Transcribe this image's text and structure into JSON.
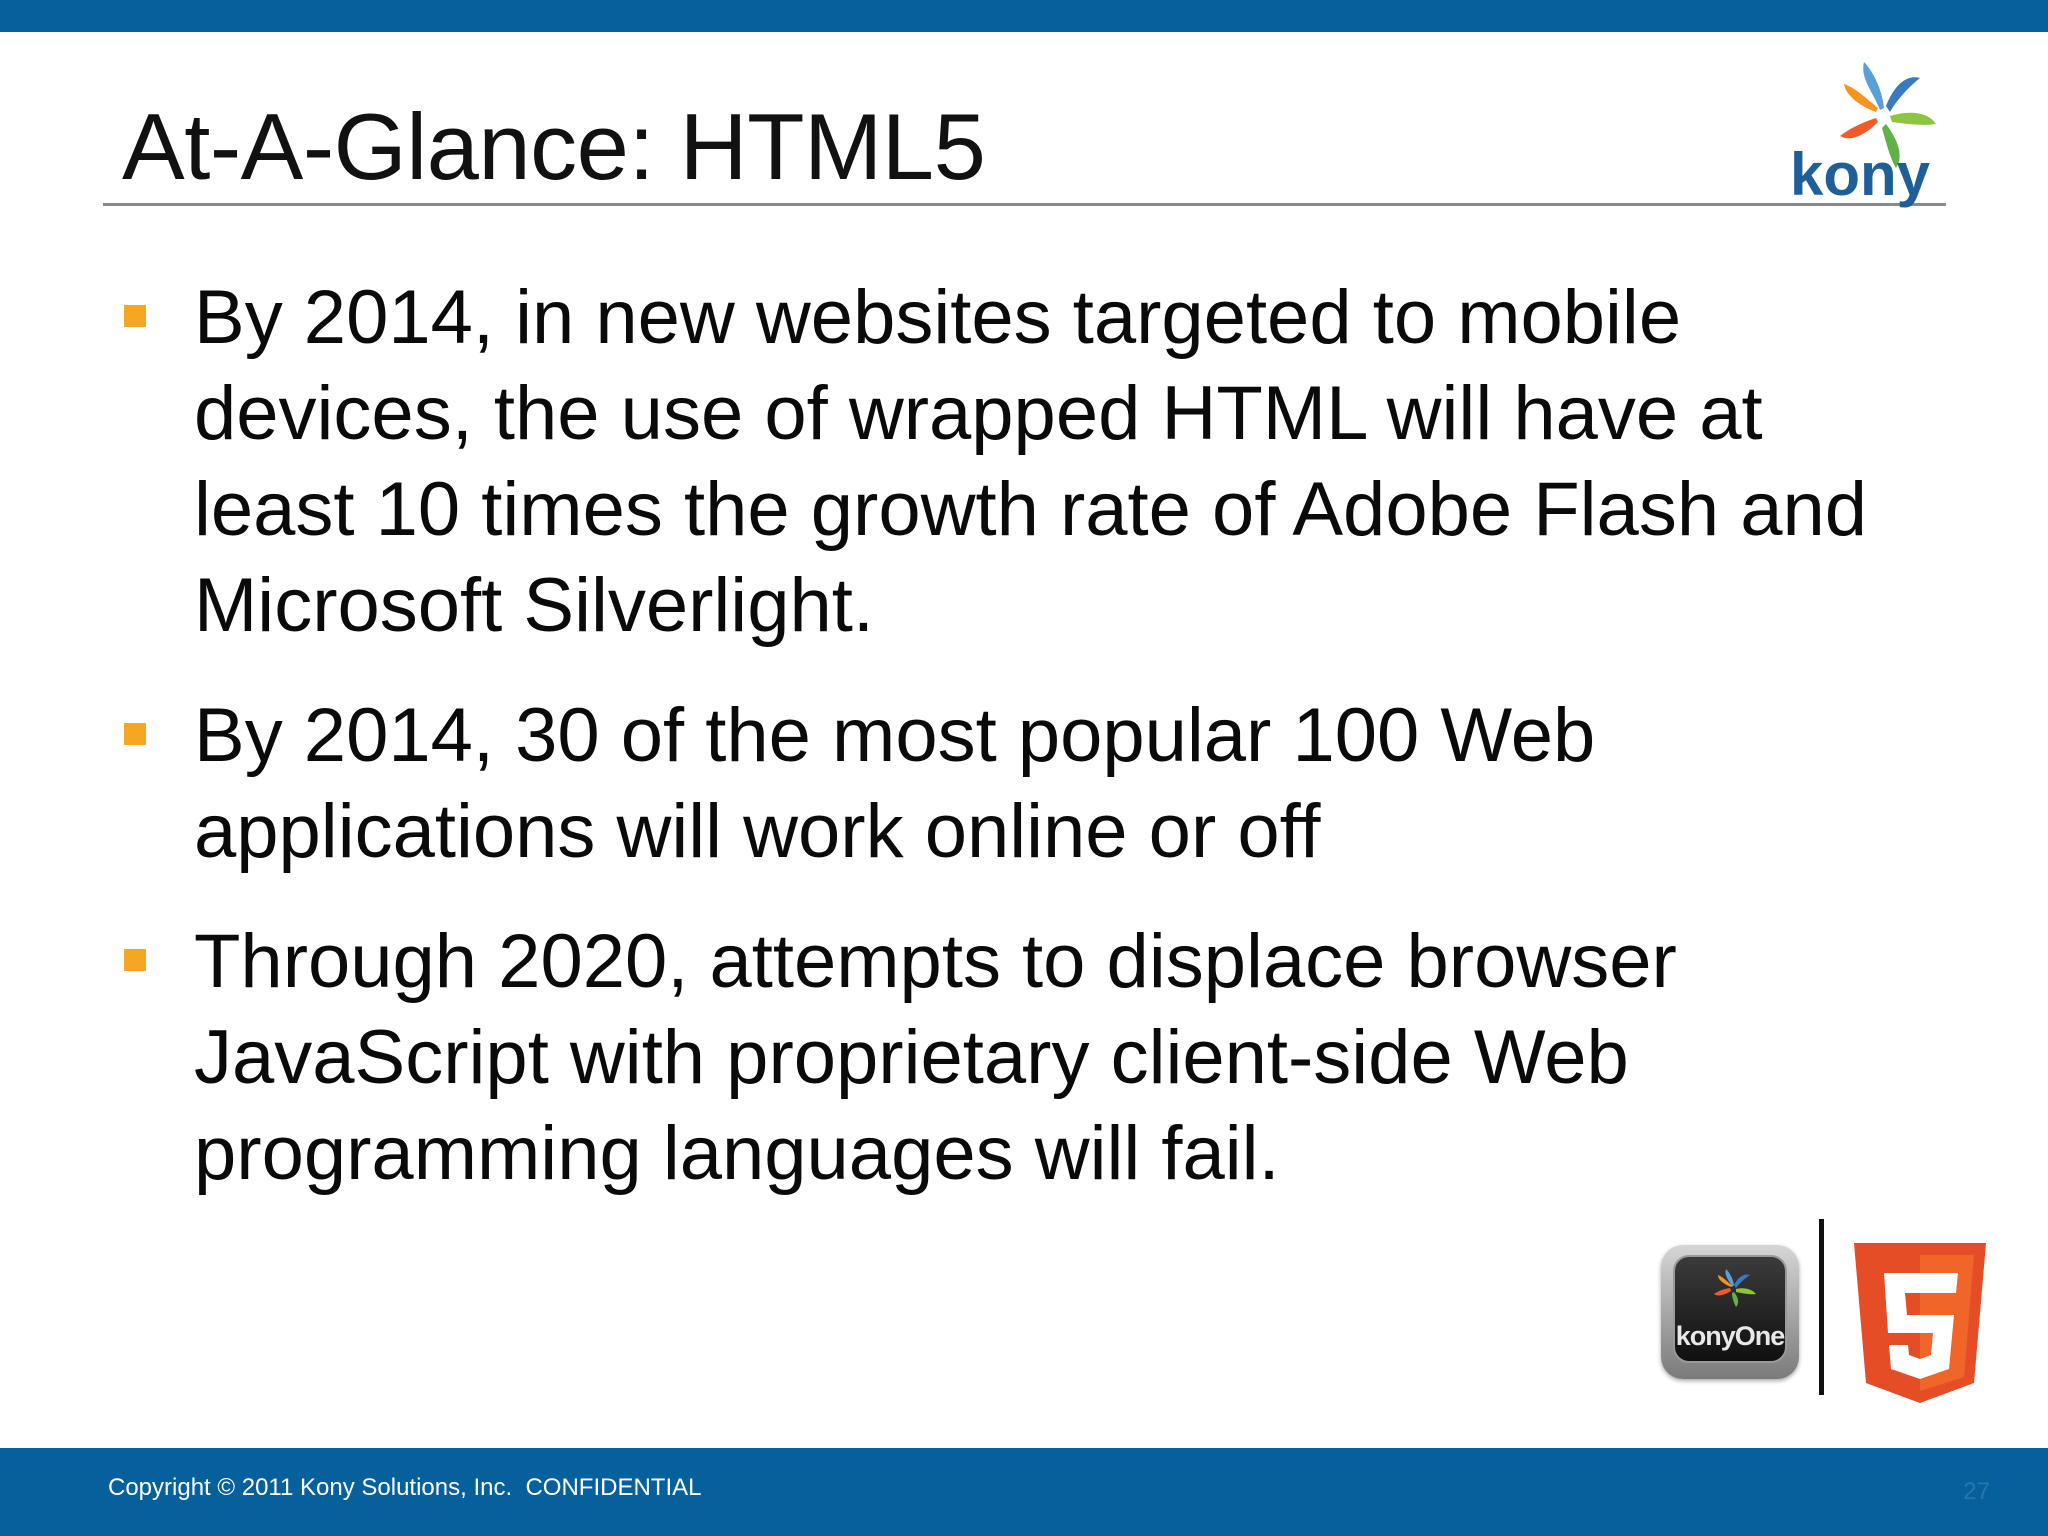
{
  "slide": {
    "title": "At-A-Glance: HTML5",
    "bullets": [
      "By 2014, in new websites targeted to mobile devices, the use of wrapped HTML will have at least 10 times the growth rate of Adobe Flash and Microsoft Silverlight.",
      "By 2014, 30 of the most popular 100 Web applications will work online or off",
      "Through 2020, attempts to displace browser JavaScript with proprietary client-side Web programming languages will fail."
    ]
  },
  "logo": {
    "wordmark": "kony",
    "icon": "kony-logo-icon"
  },
  "footer_icons": {
    "kony_one_label": "konyOne",
    "html5_badge": "5"
  },
  "footer": {
    "copyright": "Copyright © 2011 Kony Solutions, Inc.  CONFIDENTIAL",
    "page_number": "27"
  },
  "colors": {
    "brand_blue": "#05609c",
    "bullet_orange": "#f5a623",
    "html5_orange": "#e44d26"
  }
}
